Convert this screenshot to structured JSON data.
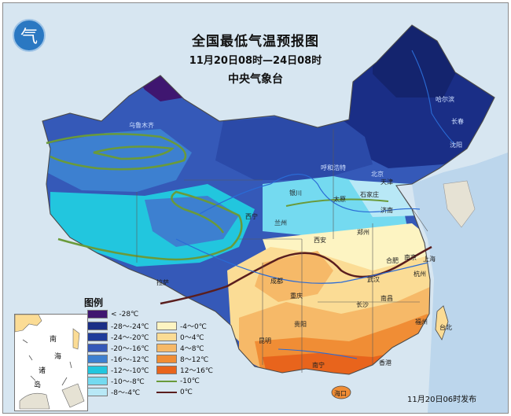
{
  "title": "全国最低气温预报图",
  "period": "11月20日08时—24日08时",
  "agency": "中央气象台",
  "issued": "11月20日06时发布",
  "legend": {
    "title": "图例",
    "items": [
      {
        "label": "< -28℃",
        "color": "#3f1670"
      },
      {
        "label": "-28～-24℃",
        "color": "#1a2e86"
      },
      {
        "label": "-24～-20℃",
        "color": "#1f3c9a"
      },
      {
        "label": "-20～-16℃",
        "color": "#3559b8"
      },
      {
        "label": "-16～-12℃",
        "color": "#3d80d0"
      },
      {
        "label": "-12～-10℃",
        "color": "#22c6de"
      },
      {
        "label": "-10～-8℃",
        "color": "#74daf0"
      },
      {
        "label": "-8～-4℃",
        "color": "#b8e8f6"
      },
      {
        "label": "-4～0℃",
        "color": "#fdf4c2"
      },
      {
        "label": "0～4℃",
        "color": "#fbdc95"
      },
      {
        "label": "4～8℃",
        "color": "#f6b968"
      },
      {
        "label": "8～12℃",
        "color": "#f08d35"
      },
      {
        "label": "12～16℃",
        "color": "#e8641c"
      },
      {
        "label": "-10℃",
        "color": "#6a9a3a",
        "kind": "line"
      },
      {
        "label": "0℃",
        "color": "#5a1e1e",
        "kind": "line"
      }
    ]
  },
  "inset_labels": [
    "南",
    "海",
    "诸",
    "岛"
  ],
  "cities": [
    "乌鲁木齐",
    "拉萨",
    "西宁",
    "兰州",
    "银川",
    "呼和浩特",
    "北京",
    "天津",
    "石家庄",
    "太原",
    "济南",
    "郑州",
    "西安",
    "成都",
    "重庆",
    "贵阳",
    "昆明",
    "南宁",
    "海口",
    "长沙",
    "南昌",
    "武汉",
    "合肥",
    "南京",
    "上海",
    "杭州",
    "福州",
    "台北",
    "香港",
    "哈尔滨",
    "长春",
    "沈阳"
  ]
}
